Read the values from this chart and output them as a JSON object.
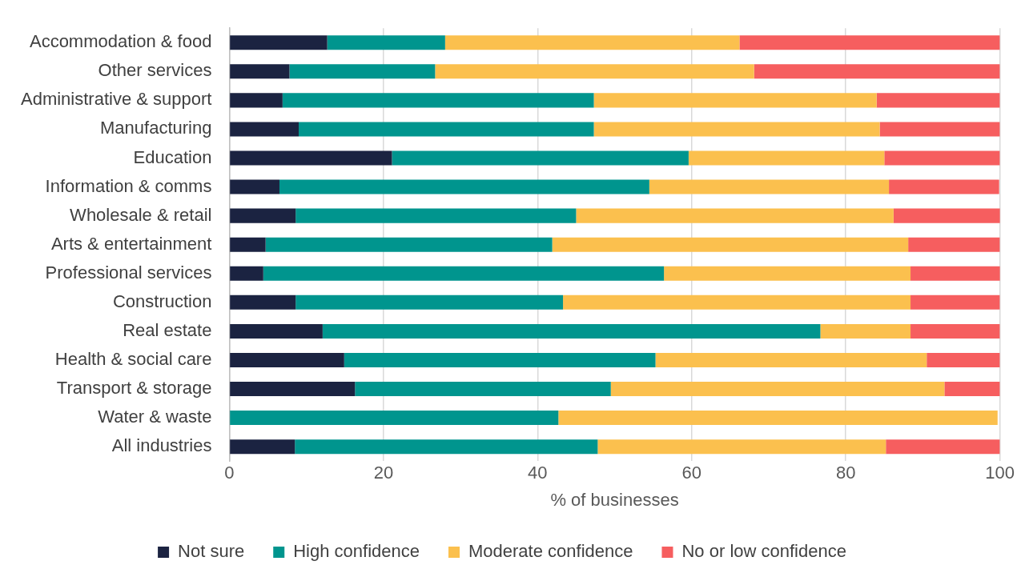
{
  "chart_data": {
    "type": "bar",
    "orientation": "horizontal",
    "stacked": true,
    "xlabel": "% of businesses",
    "categories": [
      "Accommodation & food",
      "Other services",
      "Administrative & support",
      "Manufacturing",
      "Education",
      "Information & comms",
      "Wholesale & retail",
      "Arts & entertainment",
      "Professional services",
      "Construction",
      "Real estate",
      "Health & social care",
      "Transport & storage",
      "Water & waste",
      "All industries"
    ],
    "series": [
      {
        "name": "Not sure",
        "color": "#1b2341",
        "values": [
          12.7,
          7.8,
          6.9,
          9.0,
          21.1,
          6.5,
          8.6,
          4.7,
          4.4,
          8.6,
          12.1,
          14.9,
          16.3,
          0,
          8.5
        ]
      },
      {
        "name": "High confidence",
        "color": "#00958e",
        "values": [
          15.3,
          18.9,
          40.4,
          38.3,
          38.5,
          48.0,
          36.4,
          37.2,
          52.0,
          34.7,
          64.6,
          40.4,
          33.2,
          42.7,
          39.3
        ]
      },
      {
        "name": "Moderate confidence",
        "color": "#fbc04e",
        "values": [
          38.2,
          41.4,
          36.7,
          37.1,
          25.4,
          31.1,
          41.2,
          46.2,
          32.0,
          45.1,
          11.7,
          35.2,
          43.3,
          57.0,
          37.4
        ]
      },
      {
        "name": "No or low confidence",
        "color": "#f65e5f",
        "values": [
          33.8,
          31.9,
          16.0,
          15.6,
          15.0,
          14.3,
          13.9,
          11.9,
          11.7,
          11.6,
          11.6,
          9.5,
          7.2,
          0,
          14.8
        ]
      }
    ],
    "xlim": [
      0,
      100
    ],
    "xticks": [
      0,
      20,
      40,
      60,
      80,
      100
    ],
    "grid": "x",
    "legend": "bottom"
  }
}
